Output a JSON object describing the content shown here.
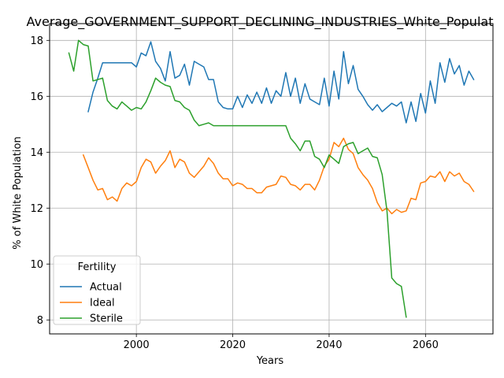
{
  "chart_data": {
    "type": "line",
    "title": "Average_GOVERNMENT_SUPPORT_DECLINING_INDUSTRIES_White_Populat",
    "xlabel": "Years",
    "ylabel": "% of White Population",
    "xlim": [
      1982,
      2074
    ],
    "ylim": [
      7.5,
      18.6
    ],
    "xticks": [
      2000,
      2020,
      2040,
      2060
    ],
    "yticks": [
      8,
      10,
      12,
      14,
      16,
      18
    ],
    "grid": true,
    "legend": {
      "title": "Fertility",
      "placement": "lower-left"
    },
    "series": [
      {
        "name": "Actual",
        "color": "#1f77b4",
        "points": [
          [
            1990,
            15.45
          ],
          [
            1991,
            16.15
          ],
          [
            1992,
            16.65
          ],
          [
            1993,
            17.2
          ],
          [
            1994,
            17.2
          ],
          [
            1995,
            17.2
          ],
          [
            1996,
            17.2
          ],
          [
            1997,
            17.2
          ],
          [
            1998,
            17.2
          ],
          [
            1999,
            17.2
          ],
          [
            2000,
            17.05
          ],
          [
            2001,
            17.55
          ],
          [
            2002,
            17.45
          ],
          [
            2003,
            17.95
          ],
          [
            2004,
            17.25
          ],
          [
            2005,
            17.0
          ],
          [
            2006,
            16.55
          ],
          [
            2007,
            17.6
          ],
          [
            2008,
            16.65
          ],
          [
            2009,
            16.75
          ],
          [
            2010,
            17.15
          ],
          [
            2011,
            16.4
          ],
          [
            2012,
            17.25
          ],
          [
            2013,
            17.15
          ],
          [
            2014,
            17.05
          ],
          [
            2015,
            16.6
          ],
          [
            2016,
            16.6
          ],
          [
            2017,
            15.8
          ],
          [
            2018,
            15.6
          ],
          [
            2019,
            15.55
          ],
          [
            2020,
            15.55
          ],
          [
            2021,
            16.0
          ],
          [
            2022,
            15.6
          ],
          [
            2023,
            16.05
          ],
          [
            2024,
            15.75
          ],
          [
            2025,
            16.15
          ],
          [
            2026,
            15.75
          ],
          [
            2027,
            16.3
          ],
          [
            2028,
            15.75
          ],
          [
            2029,
            16.2
          ],
          [
            2030,
            16.0
          ],
          [
            2031,
            16.85
          ],
          [
            2032,
            16.0
          ],
          [
            2033,
            16.65
          ],
          [
            2034,
            15.75
          ],
          [
            2035,
            16.45
          ],
          [
            2036,
            15.9
          ],
          [
            2037,
            15.8
          ],
          [
            2038,
            15.7
          ],
          [
            2039,
            16.65
          ],
          [
            2040,
            15.65
          ],
          [
            2041,
            16.9
          ],
          [
            2042,
            15.9
          ],
          [
            2043,
            17.6
          ],
          [
            2044,
            16.45
          ],
          [
            2045,
            17.1
          ],
          [
            2046,
            16.25
          ],
          [
            2047,
            16.0
          ],
          [
            2048,
            15.7
          ],
          [
            2049,
            15.5
          ],
          [
            2050,
            15.7
          ],
          [
            2051,
            15.45
          ],
          [
            2052,
            15.6
          ],
          [
            2053,
            15.75
          ],
          [
            2054,
            15.65
          ],
          [
            2055,
            15.8
          ],
          [
            2056,
            15.05
          ],
          [
            2057,
            15.8
          ],
          [
            2058,
            15.1
          ],
          [
            2059,
            16.1
          ],
          [
            2060,
            15.4
          ],
          [
            2061,
            16.55
          ],
          [
            2062,
            15.75
          ],
          [
            2063,
            17.2
          ],
          [
            2064,
            16.5
          ],
          [
            2065,
            17.35
          ],
          [
            2066,
            16.8
          ],
          [
            2067,
            17.1
          ],
          [
            2068,
            16.4
          ],
          [
            2069,
            16.9
          ],
          [
            2070,
            16.6
          ]
        ]
      },
      {
        "name": "Ideal",
        "color": "#ff7f0e",
        "points": [
          [
            1989,
            13.9
          ],
          [
            1990,
            13.45
          ],
          [
            1991,
            13.0
          ],
          [
            1992,
            12.65
          ],
          [
            1993,
            12.7
          ],
          [
            1994,
            12.3
          ],
          [
            1995,
            12.4
          ],
          [
            1996,
            12.25
          ],
          [
            1997,
            12.7
          ],
          [
            1998,
            12.9
          ],
          [
            1999,
            12.8
          ],
          [
            2000,
            12.95
          ],
          [
            2001,
            13.45
          ],
          [
            2002,
            13.75
          ],
          [
            2003,
            13.65
          ],
          [
            2004,
            13.25
          ],
          [
            2005,
            13.5
          ],
          [
            2006,
            13.7
          ],
          [
            2007,
            14.05
          ],
          [
            2008,
            13.45
          ],
          [
            2009,
            13.75
          ],
          [
            2010,
            13.65
          ],
          [
            2011,
            13.25
          ],
          [
            2012,
            13.1
          ],
          [
            2013,
            13.3
          ],
          [
            2014,
            13.5
          ],
          [
            2015,
            13.8
          ],
          [
            2016,
            13.6
          ],
          [
            2017,
            13.25
          ],
          [
            2018,
            13.05
          ],
          [
            2019,
            13.05
          ],
          [
            2020,
            12.8
          ],
          [
            2021,
            12.9
          ],
          [
            2022,
            12.85
          ],
          [
            2023,
            12.7
          ],
          [
            2024,
            12.7
          ],
          [
            2025,
            12.55
          ],
          [
            2026,
            12.55
          ],
          [
            2027,
            12.75
          ],
          [
            2028,
            12.8
          ],
          [
            2029,
            12.85
          ],
          [
            2030,
            13.15
          ],
          [
            2031,
            13.1
          ],
          [
            2032,
            12.85
          ],
          [
            2033,
            12.8
          ],
          [
            2034,
            12.65
          ],
          [
            2035,
            12.85
          ],
          [
            2036,
            12.85
          ],
          [
            2037,
            12.65
          ],
          [
            2038,
            13.0
          ],
          [
            2039,
            13.5
          ],
          [
            2040,
            13.75
          ],
          [
            2041,
            14.35
          ],
          [
            2042,
            14.2
          ],
          [
            2043,
            14.5
          ],
          [
            2044,
            14.1
          ],
          [
            2045,
            13.95
          ],
          [
            2046,
            13.45
          ],
          [
            2047,
            13.2
          ],
          [
            2048,
            13.0
          ],
          [
            2049,
            12.7
          ],
          [
            2050,
            12.2
          ],
          [
            2051,
            11.9
          ],
          [
            2052,
            12.0
          ],
          [
            2053,
            11.8
          ],
          [
            2054,
            11.95
          ],
          [
            2055,
            11.85
          ],
          [
            2056,
            11.9
          ],
          [
            2057,
            12.35
          ],
          [
            2058,
            12.3
          ],
          [
            2059,
            12.9
          ],
          [
            2060,
            12.95
          ],
          [
            2061,
            13.15
          ],
          [
            2062,
            13.1
          ],
          [
            2063,
            13.3
          ],
          [
            2064,
            12.95
          ],
          [
            2065,
            13.3
          ],
          [
            2066,
            13.15
          ],
          [
            2067,
            13.25
          ],
          [
            2068,
            12.95
          ],
          [
            2069,
            12.85
          ],
          [
            2070,
            12.6
          ]
        ]
      },
      {
        "name": "Sterile",
        "color": "#2ca02c",
        "points": [
          [
            1986,
            17.55
          ],
          [
            1987,
            16.9
          ],
          [
            1988,
            18.0
          ],
          [
            1989,
            17.85
          ],
          [
            1990,
            17.8
          ],
          [
            1991,
            16.55
          ],
          [
            1992,
            16.6
          ],
          [
            1993,
            16.65
          ],
          [
            1994,
            15.85
          ],
          [
            1995,
            15.65
          ],
          [
            1996,
            15.55
          ],
          [
            1997,
            15.8
          ],
          [
            1998,
            15.65
          ],
          [
            1999,
            15.5
          ],
          [
            2000,
            15.6
          ],
          [
            2001,
            15.55
          ],
          [
            2002,
            15.8
          ],
          [
            2003,
            16.2
          ],
          [
            2004,
            16.65
          ],
          [
            2005,
            16.5
          ],
          [
            2006,
            16.4
          ],
          [
            2007,
            16.35
          ],
          [
            2008,
            15.85
          ],
          [
            2009,
            15.8
          ],
          [
            2010,
            15.6
          ],
          [
            2011,
            15.5
          ],
          [
            2012,
            15.15
          ],
          [
            2013,
            14.95
          ],
          [
            2014,
            15.0
          ],
          [
            2015,
            15.05
          ],
          [
            2016,
            14.95
          ],
          [
            2017,
            14.95
          ],
          [
            2018,
            14.95
          ],
          [
            2019,
            14.95
          ],
          [
            2020,
            14.95
          ],
          [
            2021,
            14.95
          ],
          [
            2022,
            14.95
          ],
          [
            2023,
            14.95
          ],
          [
            2024,
            14.95
          ],
          [
            2025,
            14.95
          ],
          [
            2026,
            14.95
          ],
          [
            2027,
            14.95
          ],
          [
            2028,
            14.95
          ],
          [
            2029,
            14.95
          ],
          [
            2030,
            14.95
          ],
          [
            2031,
            14.95
          ],
          [
            2032,
            14.5
          ],
          [
            2033,
            14.3
          ],
          [
            2034,
            14.05
          ],
          [
            2035,
            14.4
          ],
          [
            2036,
            14.4
          ],
          [
            2037,
            13.85
          ],
          [
            2038,
            13.75
          ],
          [
            2039,
            13.45
          ],
          [
            2040,
            13.9
          ],
          [
            2041,
            13.75
          ],
          [
            2042,
            13.6
          ],
          [
            2043,
            14.2
          ],
          [
            2044,
            14.3
          ],
          [
            2045,
            14.35
          ],
          [
            2046,
            13.95
          ],
          [
            2047,
            14.05
          ],
          [
            2048,
            14.15
          ],
          [
            2049,
            13.85
          ],
          [
            2050,
            13.8
          ],
          [
            2051,
            13.2
          ],
          [
            2052,
            11.9
          ],
          [
            2053,
            9.5
          ],
          [
            2054,
            9.3
          ],
          [
            2055,
            9.2
          ],
          [
            2056,
            8.1
          ]
        ]
      }
    ]
  }
}
